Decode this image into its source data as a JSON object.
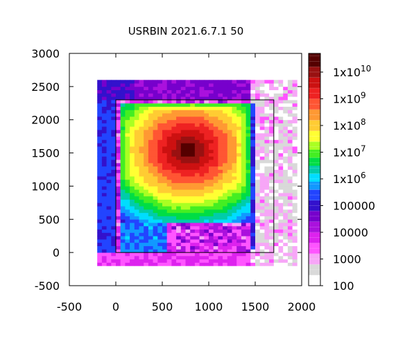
{
  "chart_data": {
    "type": "heatmap",
    "title": "USRBIN 2021.6.7.1 50",
    "xlabel": "",
    "ylabel": "",
    "xlim": [
      -500,
      2000
    ],
    "ylim": [
      -500,
      3000
    ],
    "x_ticks": [
      {
        "value": -500,
        "label": "-500"
      },
      {
        "value": 0,
        "label": "0"
      },
      {
        "value": 500,
        "label": "500"
      },
      {
        "value": 1000,
        "label": "1000"
      },
      {
        "value": 1500,
        "label": "1500"
      },
      {
        "value": 2000,
        "label": "2000"
      }
    ],
    "y_ticks": [
      {
        "value": -500,
        "label": "-500"
      },
      {
        "value": 0,
        "label": "0"
      },
      {
        "value": 500,
        "label": "500"
      },
      {
        "value": 1000,
        "label": "1000"
      },
      {
        "value": 1500,
        "label": "1500"
      },
      {
        "value": 2000,
        "label": "2000"
      },
      {
        "value": 2500,
        "label": "2500"
      },
      {
        "value": 3000,
        "label": "3000"
      }
    ],
    "log_scale": true,
    "colorbar": {
      "range_exponent": [
        2,
        10.7
      ],
      "labels": [
        {
          "exponent": 10,
          "base": "1x10",
          "exp_text": "10"
        },
        {
          "exponent": 9,
          "base": "1x10",
          "exp_text": "9"
        },
        {
          "exponent": 8,
          "base": "1x10",
          "exp_text": "8"
        },
        {
          "exponent": 7,
          "base": "1x10",
          "exp_text": "7"
        },
        {
          "exponent": 6,
          "base": "1x10",
          "exp_text": "6"
        },
        {
          "exponent": 5,
          "base": "100000",
          "exp_text": ""
        },
        {
          "exponent": 4,
          "base": "10000",
          "exp_text": ""
        },
        {
          "exponent": 3,
          "base": "1000",
          "exp_text": ""
        },
        {
          "exponent": 2,
          "base": "100",
          "exp_text": ""
        }
      ],
      "palette": [
        [
          2.0,
          "#ffffff"
        ],
        [
          2.4,
          "#d9d9d9"
        ],
        [
          2.8,
          "#f7a6f7"
        ],
        [
          3.2,
          "#ff55ff"
        ],
        [
          3.6,
          "#dd22ee"
        ],
        [
          4.0,
          "#aa11dd"
        ],
        [
          4.4,
          "#7700cc"
        ],
        [
          4.8,
          "#3311cc"
        ],
        [
          5.2,
          "#2244ff"
        ],
        [
          5.6,
          "#1199ff"
        ],
        [
          5.9,
          "#00ddff"
        ],
        [
          6.2,
          "#00ccaa"
        ],
        [
          6.5,
          "#00dd44"
        ],
        [
          6.8,
          "#44ee22"
        ],
        [
          7.1,
          "#aaff22"
        ],
        [
          7.4,
          "#ffff33"
        ],
        [
          7.8,
          "#ffcc33"
        ],
        [
          8.2,
          "#ff9933"
        ],
        [
          8.6,
          "#ff5533"
        ],
        [
          9.0,
          "#ee2222"
        ],
        [
          9.4,
          "#cc1111"
        ],
        [
          9.8,
          "#991111"
        ],
        [
          10.2,
          "#550000"
        ],
        [
          10.7,
          "#000000"
        ]
      ]
    },
    "grid": {
      "x_start": -200,
      "x_end": 1950,
      "y_start": -200,
      "y_end": 2600,
      "dx": 50,
      "dy": 50
    },
    "outline_box": {
      "x": [
        0,
        1700
      ],
      "y": [
        0,
        2300
      ]
    },
    "field_description": "log10 of scored quantity; hot core near (800,1550), green/yellow shell inside outline box, blue/purple outside, grey/white at far right column"
  }
}
